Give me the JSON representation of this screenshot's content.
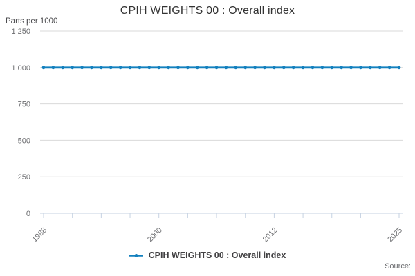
{
  "title": "CPIH WEIGHTS 00 : Overall index",
  "y_axis_unit": "Parts per 1000",
  "legend": {
    "label": "CPIH WEIGHTS 00 : Overall index"
  },
  "source_label": "Source:",
  "colors": {
    "series": "#1380BE",
    "gridline": "#d9d9d9",
    "axis": "#c6d2e2",
    "tick_text": "#6d6e71",
    "title_text": "#333333",
    "legend_text": "#414042"
  },
  "chart_data": {
    "type": "line",
    "title": "CPIH WEIGHTS 00 : Overall index",
    "ylabel": "Parts per 1000",
    "xlabel": "",
    "grid": "horizontal",
    "legend_position": "bottom",
    "marker": "circle",
    "xlim": [
      1988,
      2025
    ],
    "ylim": [
      0,
      1250
    ],
    "x": [
      1988,
      1989,
      1990,
      1991,
      1992,
      1993,
      1994,
      1995,
      1996,
      1997,
      1998,
      1999,
      2000,
      2001,
      2002,
      2003,
      2004,
      2005,
      2006,
      2007,
      2008,
      2009,
      2010,
      2011,
      2012,
      2013,
      2014,
      2015,
      2016,
      2017,
      2018,
      2019,
      2020,
      2021,
      2022,
      2023,
      2024,
      2025
    ],
    "series": [
      {
        "name": "CPIH WEIGHTS 00 : Overall index",
        "values": [
          1000,
          1000,
          1000,
          1000,
          1000,
          1000,
          1000,
          1000,
          1000,
          1000,
          1000,
          1000,
          1000,
          1000,
          1000,
          1000,
          1000,
          1000,
          1000,
          1000,
          1000,
          1000,
          1000,
          1000,
          1000,
          1000,
          1000,
          1000,
          1000,
          1000,
          1000,
          1000,
          1000,
          1000,
          1000,
          1000,
          1000,
          1000
        ]
      }
    ],
    "y_ticks": [
      0,
      250,
      500,
      750,
      1000,
      1250
    ],
    "y_tick_labels": [
      "0",
      "250",
      "500",
      "750",
      "1 000",
      "1 250"
    ],
    "x_ticks": [
      1988,
      1991,
      1994,
      1997,
      2000,
      2003,
      2006,
      2009,
      2012,
      2015,
      2018,
      2021,
      2025
    ],
    "x_tick_labels": [
      1988,
      2000,
      2012,
      2025
    ]
  }
}
